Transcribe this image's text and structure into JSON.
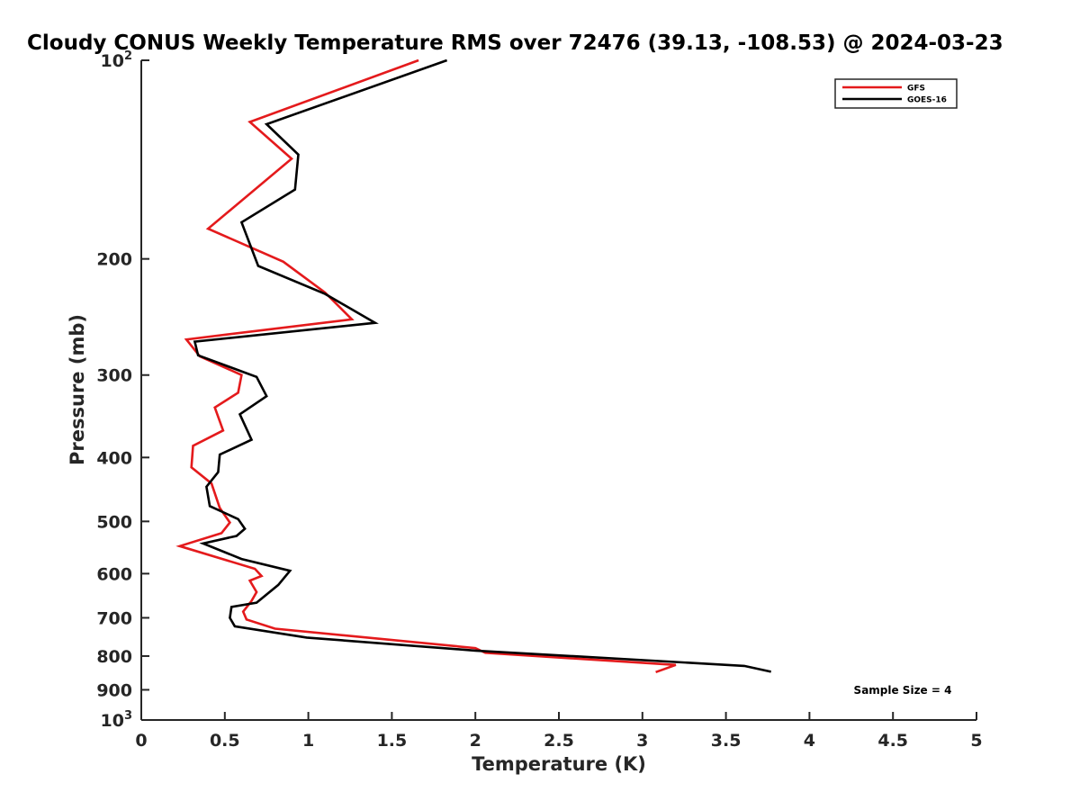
{
  "chart_data": {
    "type": "line",
    "title": "Cloudy CONUS Weekly Temperature RMS over 72476 (39.13, -108.53) @ 2024-03-23",
    "xlabel": "Temperature (K)",
    "ylabel": "Pressure (mb)",
    "xlim": [
      0,
      5
    ],
    "ylim": [
      100,
      1000
    ],
    "y_scale": "log",
    "y_reversed": true,
    "x_ticks": [
      "0",
      "0.5",
      "1",
      "1.5",
      "2",
      "2.5",
      "3",
      "3.5",
      "4",
      "4.5",
      "5"
    ],
    "y_ticks": [
      {
        "value": 100,
        "base": "10",
        "exp": "2"
      },
      {
        "value": 200,
        "label": "200"
      },
      {
        "value": 300,
        "label": "300"
      },
      {
        "value": 400,
        "label": "400"
      },
      {
        "value": 500,
        "label": "500"
      },
      {
        "value": 600,
        "label": "600"
      },
      {
        "value": 700,
        "label": "700"
      },
      {
        "value": 800,
        "label": "800"
      },
      {
        "value": 900,
        "label": "900"
      },
      {
        "value": 1000,
        "base": "10",
        "exp": "3"
      }
    ],
    "grid": false,
    "legend_position": "top-right",
    "annotation": "Sample Size = 4",
    "series": [
      {
        "name": "GFS",
        "color": "#e41a1c",
        "x": [
          1.66,
          0.65,
          0.9,
          0.4,
          0.85,
          1.1,
          1.26,
          0.27,
          0.35,
          0.6,
          0.58,
          0.44,
          0.49,
          0.31,
          0.3,
          0.42,
          0.47,
          0.53,
          0.48,
          0.23,
          0.68,
          0.72,
          0.65,
          0.69,
          0.66,
          0.61,
          0.63,
          0.8,
          2.0,
          2.06,
          3.2,
          3.08
        ],
        "y": [
          100,
          124,
          141,
          180,
          202,
          225,
          247,
          265,
          281,
          300,
          319,
          336,
          364,
          384,
          414,
          438,
          477,
          502,
          521,
          545,
          590,
          605,
          615,
          640,
          660,
          685,
          704,
          727,
          778,
          791,
          825,
          846
        ]
      },
      {
        "name": "GOES-16",
        "color": "#000000",
        "x": [
          1.83,
          0.75,
          0.94,
          0.92,
          0.6,
          0.7,
          1.1,
          1.4,
          0.32,
          0.34,
          0.69,
          0.75,
          0.59,
          0.66,
          0.47,
          0.46,
          0.39,
          0.41,
          0.58,
          0.62,
          0.57,
          0.37,
          0.6,
          0.89,
          0.82,
          0.69,
          0.54,
          0.53,
          0.56,
          0.99,
          2.0,
          3.61,
          3.77
        ],
        "y": [
          100,
          125,
          139,
          157,
          176,
          205,
          226,
          250,
          267,
          280,
          302,
          323,
          344,
          376,
          396,
          421,
          443,
          474,
          496,
          513,
          526,
          540,
          570,
          594,
          624,
          664,
          674,
          700,
          721,
          750,
          785,
          828,
          845
        ]
      }
    ]
  }
}
